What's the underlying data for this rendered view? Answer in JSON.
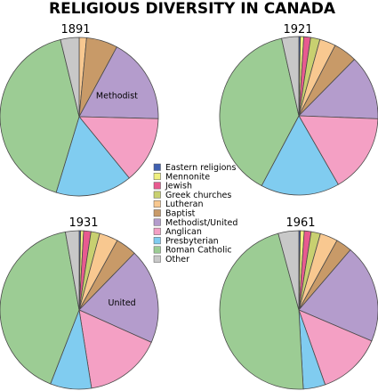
{
  "chart_data": {
    "type": "pie",
    "title": "RELIGIOUS DIVERSITY IN CANADA",
    "categories": [
      "Eastern religions",
      "Mennonite",
      "Jewish",
      "Greek churches",
      "Lutheran",
      "Baptist",
      "Methodist/United",
      "Anglican",
      "Presbyterian",
      "Roman Catholic",
      "Other"
    ],
    "colors": [
      "#4060b0",
      "#f0f080",
      "#e85a90",
      "#c8d070",
      "#f8c890",
      "#c89a68",
      "#b49ccc",
      "#f4a0c4",
      "#80ccf0",
      "#9ccc94",
      "#c8c8c8"
    ],
    "legend_position": "center",
    "pies": [
      {
        "year": "1891",
        "values": [
          0,
          0,
          0,
          0,
          1.5,
          6.4,
          17.5,
          13.7,
          15.6,
          41.5,
          3.8
        ],
        "labels": [
          {
            "category": "Methodist/United",
            "text": "Methodist"
          }
        ]
      },
      {
        "year": "1921",
        "values": [
          0.3,
          0.7,
          1.4,
          1.9,
          3.3,
          4.8,
          13.2,
          16.1,
          16.1,
          38.7,
          3.5
        ],
        "labels": []
      },
      {
        "year": "1931",
        "values": [
          0.3,
          0.6,
          1.5,
          1.8,
          3.8,
          4.3,
          19.4,
          15.8,
          8.4,
          41.3,
          2.8
        ],
        "labels": [
          {
            "category": "Methodist/United",
            "text": "United"
          }
        ]
      },
      {
        "year": "1961",
        "values": [
          0.3,
          0.8,
          1.4,
          1.9,
          3.6,
          3.3,
          20.1,
          13.2,
          4.5,
          46.7,
          4.2
        ],
        "labels": []
      }
    ]
  }
}
